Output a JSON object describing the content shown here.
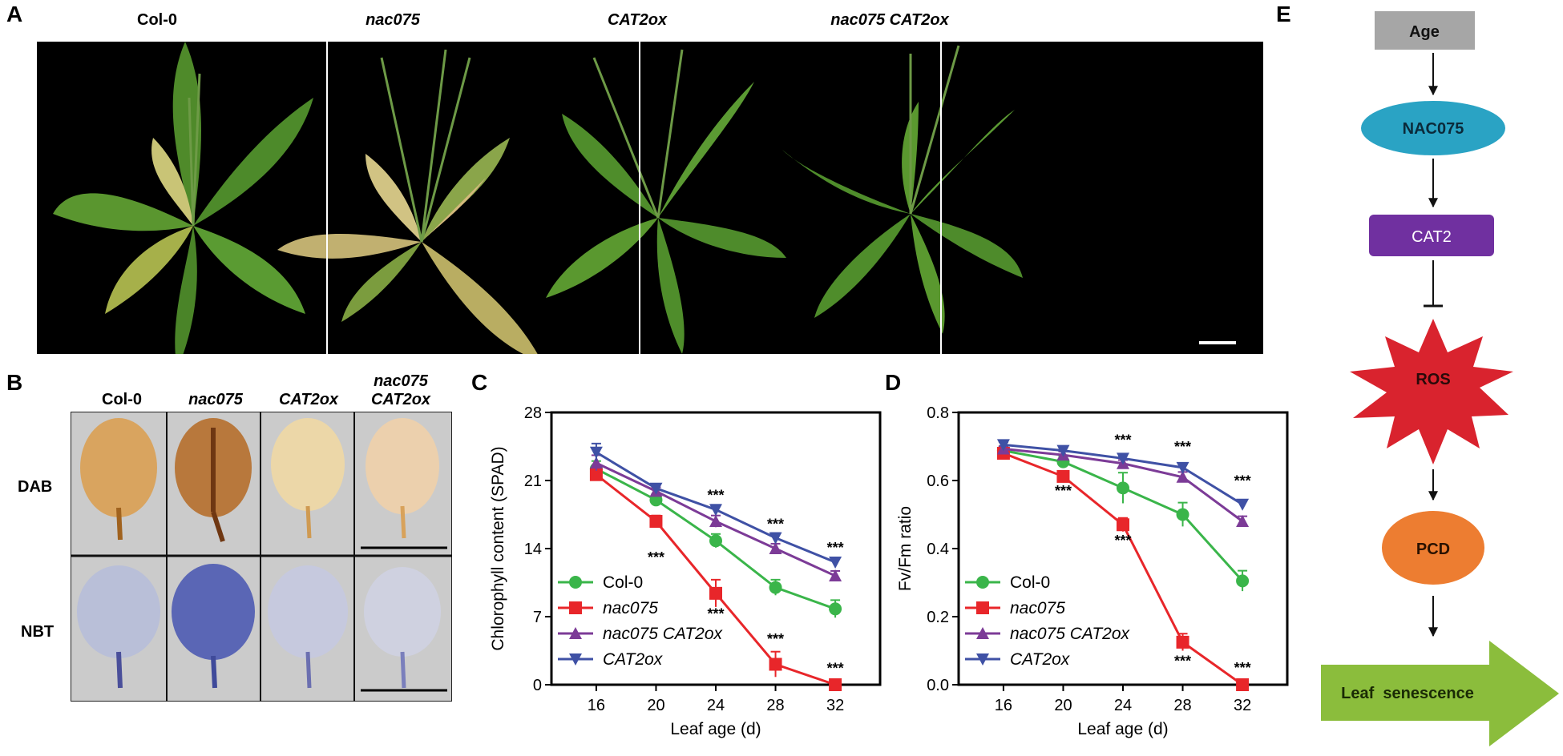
{
  "panels": {
    "A": "A",
    "B": "B",
    "C": "C",
    "D": "D",
    "E": "E"
  },
  "panel_a": {
    "labels": [
      "Col-0",
      "nac075",
      "CAT2ox",
      "nac075 CAT2ox"
    ]
  },
  "panel_b": {
    "columns": [
      "Col-0",
      "nac075",
      "CAT2ox",
      "nac075",
      "CAT2ox"
    ],
    "rows": [
      "DAB",
      "NBT"
    ]
  },
  "chart_data": [
    {
      "panel": "C",
      "type": "line",
      "xlabel": "Leaf age (d)",
      "ylabel": "Chlorophyll content (SPAD)",
      "x": [
        16,
        20,
        24,
        28,
        32
      ],
      "xticks": [
        "16",
        "20",
        "24",
        "28",
        "32"
      ],
      "yticks": [
        "0",
        "7",
        "14",
        "21",
        "28"
      ],
      "xlim": [
        13,
        35
      ],
      "ylim": [
        0,
        28
      ],
      "series": [
        {
          "name": "Col-0",
          "color": "#3ab54a",
          "marker": "circle",
          "values": [
            22.2,
            19.0,
            14.8,
            10.0,
            7.8
          ],
          "errors": [
            0.8,
            0.6,
            0.7,
            0.8,
            0.9
          ]
        },
        {
          "name": "nac075",
          "color": "#e8262a",
          "marker": "square",
          "values": [
            21.6,
            16.8,
            9.4,
            2.1,
            0.0
          ],
          "errors": [
            0.6,
            0.6,
            1.4,
            1.3,
            0.2
          ]
        },
        {
          "name": "nac075 CAT2ox",
          "color": "#7c3b97",
          "marker": "triangle-up",
          "values": [
            22.8,
            19.9,
            16.8,
            14.0,
            11.2
          ],
          "errors": [
            0.8,
            0.4,
            0.6,
            0.5,
            0.5
          ]
        },
        {
          "name": "CAT2ox",
          "color": "#3f51a5",
          "marker": "triangle-down",
          "values": [
            23.9,
            20.2,
            18.0,
            15.1,
            12.6
          ],
          "errors": [
            0.9,
            0.4,
            0.5,
            0.5,
            0.4
          ]
        }
      ],
      "significance": [
        {
          "x": 20,
          "y": 12.6,
          "label": "***"
        },
        {
          "x": 24,
          "y": 19.0,
          "label": "***"
        },
        {
          "x": 24,
          "y": 6.8,
          "label": "***"
        },
        {
          "x": 28,
          "y": 16.0,
          "label": "***"
        },
        {
          "x": 28,
          "y": 4.2,
          "label": "***"
        },
        {
          "x": 32,
          "y": 13.6,
          "label": "***"
        },
        {
          "x": 32,
          "y": 1.2,
          "label": "***"
        }
      ],
      "legend": "bottom-left"
    },
    {
      "panel": "D",
      "type": "line",
      "xlabel": "Leaf age (d)",
      "ylabel": "Fv/Fm ratio",
      "x": [
        16,
        20,
        24,
        28,
        32
      ],
      "xticks": [
        "16",
        "20",
        "24",
        "28",
        "32"
      ],
      "yticks": [
        "0.0",
        "0.2",
        "0.4",
        "0.6",
        "0.8"
      ],
      "xlim": [
        13,
        35
      ],
      "ylim": [
        0,
        0.8
      ],
      "series": [
        {
          "name": "Col-0",
          "color": "#3ab54a",
          "marker": "circle",
          "values": [
            0.688,
            0.655,
            0.578,
            0.5,
            0.305
          ],
          "errors": [
            0.01,
            0.015,
            0.045,
            0.035,
            0.03
          ]
        },
        {
          "name": "nac075",
          "color": "#e8262a",
          "marker": "square",
          "values": [
            0.68,
            0.612,
            0.47,
            0.125,
            0.0
          ],
          "errors": [
            0.01,
            0.012,
            0.02,
            0.025,
            0.005
          ]
        },
        {
          "name": "nac075 CAT2ox",
          "color": "#7c3b97",
          "marker": "triangle-up",
          "values": [
            0.693,
            0.675,
            0.65,
            0.61,
            0.48
          ],
          "errors": [
            0.008,
            0.01,
            0.01,
            0.015,
            0.015
          ]
        },
        {
          "name": "CAT2ox",
          "color": "#3f51a5",
          "marker": "triangle-down",
          "values": [
            0.705,
            0.688,
            0.665,
            0.638,
            0.53
          ],
          "errors": [
            0.008,
            0.008,
            0.008,
            0.01,
            0.01
          ]
        }
      ],
      "significance": [
        {
          "x": 20,
          "y": 0.555,
          "label": "***"
        },
        {
          "x": 24,
          "y": 0.705,
          "label": "***"
        },
        {
          "x": 24,
          "y": 0.41,
          "label": "***"
        },
        {
          "x": 28,
          "y": 0.685,
          "label": "***"
        },
        {
          "x": 28,
          "y": 0.055,
          "label": "***"
        },
        {
          "x": 32,
          "y": 0.585,
          "label": "***"
        },
        {
          "x": 32,
          "y": 0.035,
          "label": "***"
        }
      ],
      "legend": "bottom-left"
    }
  ],
  "panel_e": {
    "nodes": [
      "Age",
      "NAC075",
      "CAT2",
      "ROS",
      "PCD",
      "Leaf  senescence"
    ],
    "colors": {
      "age": "#a6a6a6",
      "nac075": "#2aa3c4",
      "cat2": "#7030a0",
      "ros": "#d9232e",
      "pcd": "#ed7d31",
      "senescence": "#8bbd3c"
    }
  }
}
